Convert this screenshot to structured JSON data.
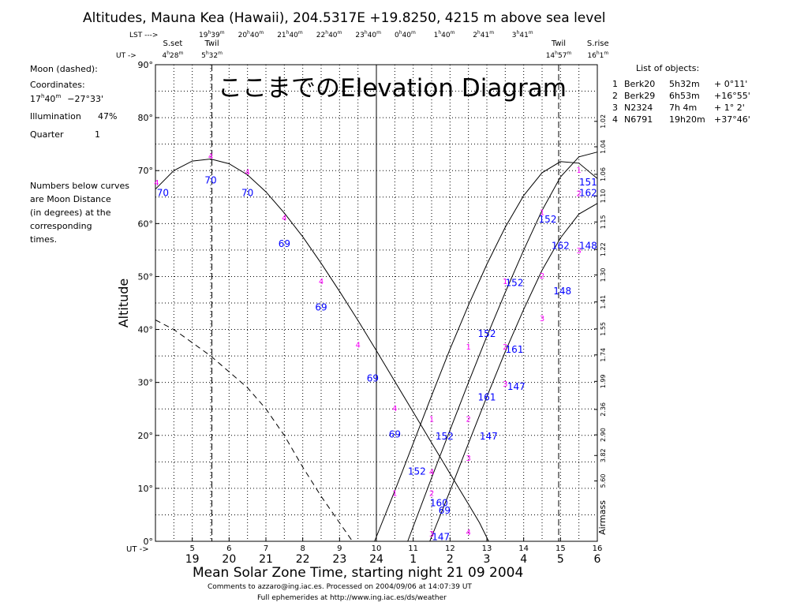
{
  "overlay_title": "ここまでのElevation Diagram",
  "header": {
    "title": "Altitudes, Mauna Kea (Hawaii), 204.5317E  +19.8250, 4215 m above sea level",
    "lst_label": "LST --->",
    "lst_ticks": [
      {
        "h": "19",
        "m": "39"
      },
      {
        "h": "20",
        "m": "40"
      },
      {
        "h": "21",
        "m": "40"
      },
      {
        "h": "22",
        "m": "40"
      },
      {
        "h": "23",
        "m": "40"
      },
      {
        "h": "0",
        "m": "40"
      },
      {
        "h": "1",
        "m": "40"
      },
      {
        "h": "2",
        "m": "41"
      },
      {
        "h": "3",
        "m": "41"
      }
    ],
    "ut_arrow": "UT ->",
    "events": [
      {
        "name": "S.set",
        "h": "4",
        "m": "28",
        "ut": 4.47
      },
      {
        "name": "Twil",
        "h": "5",
        "m": "32",
        "ut": 5.533
      },
      {
        "name": "Twil",
        "h": "14",
        "m": "57",
        "ut": 14.95
      },
      {
        "name": "S.rise",
        "h": "16",
        "m": "1",
        "ut": 16.017
      }
    ]
  },
  "left_panel": {
    "moon_label": "Moon (dashed):",
    "coords_label": "Coordinates:",
    "coords_ra_h": "17",
    "coords_ra_m": "40",
    "coords_dec": "−27°33'",
    "illumination_label": "Illumination",
    "illumination_value": "47%",
    "quarter_label": "Quarter",
    "quarter_value": "1",
    "note": [
      "Numbers below curves",
      "are Moon Distance",
      "(in degrees) at the",
      "corresponding",
      "times."
    ]
  },
  "objects_panel": {
    "title": "List of objects:",
    "items": [
      {
        "num": "1",
        "name": "Berk20",
        "ra": "5h32m",
        "dec": "+ 0°11'"
      },
      {
        "num": "2",
        "name": "Berk29",
        "ra": "6h53m",
        "dec": "+16°55'"
      },
      {
        "num": "3",
        "name": "N2324",
        "ra": "7h 4m",
        "dec": "+ 1° 2'"
      },
      {
        "num": "4",
        "name": "N6791",
        "ra": "19h20m",
        "dec": "+37°46'"
      }
    ]
  },
  "footer": {
    "ut_arrow": "UT ->",
    "xlabel": "Mean Solar Zone Time, starting night 21 09 2004",
    "comment1": "Comments to azzaro@ing.iac.es. Processed on 2004/09/06 at 14:07:39 UT",
    "comment2": "Full ephemerides at http://www.ing.iac.es/ds/weather"
  },
  "colors": {
    "marker": "#ff00ff",
    "moon_distance": "#0000ff",
    "axis": "#000000"
  },
  "chart_data": {
    "type": "line",
    "title": "Altitudes, Mauna Kea (Hawaii), 204.5317E  +19.8250, 4215 m above sea level",
    "ylabel": "Altitude",
    "xlabel": "Mean Solar Zone Time, starting night 21 09 2004",
    "xlim": [
      4.0,
      16.0
    ],
    "ylim": [
      0,
      90
    ],
    "grid": true,
    "ut_ticks": [
      5,
      6,
      7,
      8,
      9,
      10,
      11,
      12,
      13,
      14,
      15,
      16
    ],
    "local_ticks": [
      "19",
      "20",
      "21",
      "22",
      "23",
      "24",
      "1",
      "2",
      "3",
      "4",
      "5",
      "6"
    ],
    "y_ticks": [
      "0°",
      "10°",
      "20°",
      "30°",
      "40°",
      "50°",
      "60°",
      "70°",
      "80°",
      "90°"
    ],
    "airmass_label": "Airmass",
    "airmass_ticks": [
      {
        "alt": 11.4,
        "label": "5.60"
      },
      {
        "alt": 16.2,
        "label": "3.82"
      },
      {
        "alt": 20.1,
        "label": "2.90"
      },
      {
        "alt": 24.9,
        "label": "2.36"
      },
      {
        "alt": 30.2,
        "label": "1.99"
      },
      {
        "alt": 35.2,
        "label": "1.74"
      },
      {
        "alt": 40.1,
        "label": "1.55"
      },
      {
        "alt": 45.2,
        "label": "1.41"
      },
      {
        "alt": 50.3,
        "label": "1.30"
      },
      {
        "alt": 55.1,
        "label": "1.22"
      },
      {
        "alt": 60.3,
        "label": "1.15"
      },
      {
        "alt": 65.2,
        "label": "1.10"
      },
      {
        "alt": 69.3,
        "label": "1.06"
      },
      {
        "alt": 74.5,
        "label": "1.04"
      },
      {
        "alt": 79.3,
        "label": "1.02"
      }
    ],
    "midnight_ut": 10.0,
    "series": [
      {
        "name": "4",
        "style": "solid",
        "points": [
          [
            4,
            66.5
          ],
          [
            4.5,
            70
          ],
          [
            5,
            71.8
          ],
          [
            5.5,
            72.2
          ],
          [
            6,
            71.3
          ],
          [
            6.5,
            69.2
          ],
          [
            7,
            66.0
          ],
          [
            7.5,
            62.0
          ],
          [
            8,
            57.5
          ],
          [
            8.5,
            52.5
          ],
          [
            9,
            47.2
          ],
          [
            9.5,
            41.7
          ],
          [
            10,
            36.0
          ],
          [
            10.5,
            30.2
          ],
          [
            11,
            24.4
          ],
          [
            11.5,
            18.6
          ],
          [
            12,
            12.8
          ],
          [
            12.5,
            7.0
          ],
          [
            12.8,
            3.5
          ],
          [
            13.05,
            0
          ]
        ]
      },
      {
        "name": "1",
        "style": "solid",
        "points": [
          [
            9.95,
            0
          ],
          [
            10.5,
            9.5
          ],
          [
            11,
            18.5
          ],
          [
            11.5,
            27.5
          ],
          [
            12,
            36.3
          ],
          [
            12.5,
            44.6
          ],
          [
            13,
            52.3
          ],
          [
            13.5,
            59.3
          ],
          [
            14,
            65.3
          ],
          [
            14.5,
            69.6
          ],
          [
            15,
            71.7
          ],
          [
            15.5,
            71.4
          ],
          [
            16,
            68.5
          ]
        ]
      },
      {
        "name": "2",
        "style": "solid",
        "points": [
          [
            10.85,
            0
          ],
          [
            11.5,
            12
          ],
          [
            12,
            21
          ],
          [
            12.5,
            30
          ],
          [
            13,
            38.7
          ],
          [
            13.5,
            47
          ],
          [
            14,
            55
          ],
          [
            14.5,
            62.5
          ],
          [
            15,
            68.8
          ],
          [
            15.5,
            72.6
          ],
          [
            16,
            73.5
          ]
        ]
      },
      {
        "name": "3",
        "style": "solid",
        "points": [
          [
            11.45,
            0
          ],
          [
            12,
            9.5
          ],
          [
            12.5,
            18.5
          ],
          [
            13,
            27.3
          ],
          [
            13.5,
            35.8
          ],
          [
            14,
            43.8
          ],
          [
            14.5,
            51.2
          ],
          [
            15,
            57.3
          ],
          [
            15.5,
            61.8
          ],
          [
            16,
            63.8
          ]
        ]
      },
      {
        "name": "Moon",
        "style": "dashed",
        "points": [
          [
            4,
            41.8
          ],
          [
            4.5,
            40
          ],
          [
            5,
            37.5
          ],
          [
            5.5,
            35
          ],
          [
            6,
            32
          ],
          [
            6.5,
            29
          ],
          [
            7,
            25
          ],
          [
            7.5,
            20
          ],
          [
            8,
            14
          ],
          [
            8.5,
            8.5
          ],
          [
            9,
            3.5
          ],
          [
            9.35,
            0
          ]
        ]
      }
    ],
    "markers": [
      {
        "label": "4",
        "ut": 4.03,
        "alt": 67.8
      },
      {
        "label": "4",
        "ut": 5.5,
        "alt": 72.8
      },
      {
        "label": "4",
        "ut": 6.5,
        "alt": 69.8
      },
      {
        "label": "4",
        "ut": 7.5,
        "alt": 61.2
      },
      {
        "label": "4",
        "ut": 8.5,
        "alt": 49.2
      },
      {
        "label": "4",
        "ut": 9.5,
        "alt": 37.2
      },
      {
        "label": "4",
        "ut": 10.5,
        "alt": 25.2
      },
      {
        "label": "4",
        "ut": 11.5,
        "alt": 13.2
      },
      {
        "label": "4",
        "ut": 12.5,
        "alt": 1.8
      },
      {
        "label": "1",
        "ut": 10.5,
        "alt": 9.2
      },
      {
        "label": "1",
        "ut": 11.5,
        "alt": 23.2
      },
      {
        "label": "1",
        "ut": 12.5,
        "alt": 36.8
      },
      {
        "label": "1",
        "ut": 13.5,
        "alt": 49.2
      },
      {
        "label": "1",
        "ut": 14.5,
        "alt": 62.2
      },
      {
        "label": "1",
        "ut": 15.5,
        "alt": 70.2
      },
      {
        "label": "2",
        "ut": 11.5,
        "alt": 9.2
      },
      {
        "label": "2",
        "ut": 12.5,
        "alt": 23.2
      },
      {
        "label": "2",
        "ut": 13.5,
        "alt": 36.8
      },
      {
        "label": "2",
        "ut": 14.5,
        "alt": 50.2
      },
      {
        "label": "2",
        "ut": 15.5,
        "alt": 65.8
      },
      {
        "label": "3",
        "ut": 11.5,
        "alt": 1.5
      },
      {
        "label": "3",
        "ut": 12.5,
        "alt": 15.8
      },
      {
        "label": "3",
        "ut": 13.5,
        "alt": 29.8
      },
      {
        "label": "3",
        "ut": 14.5,
        "alt": 42.2
      },
      {
        "label": "3",
        "ut": 15.5,
        "alt": 55.0
      }
    ],
    "moon_distances": [
      {
        "label": "70",
        "ut": 4.2,
        "alt": 65.8
      },
      {
        "label": "70",
        "ut": 5.5,
        "alt": 68.2
      },
      {
        "label": "70",
        "ut": 6.5,
        "alt": 65.8
      },
      {
        "label": "69",
        "ut": 7.5,
        "alt": 56.2
      },
      {
        "label": "69",
        "ut": 8.5,
        "alt": 44.2
      },
      {
        "label": "69",
        "ut": 9.9,
        "alt": 30.8
      },
      {
        "label": "69",
        "ut": 10.5,
        "alt": 20.2
      },
      {
        "label": "69",
        "ut": 11.85,
        "alt": 5.8
      },
      {
        "label": "152",
        "ut": 11.1,
        "alt": 13.2
      },
      {
        "label": "152",
        "ut": 11.85,
        "alt": 19.8
      },
      {
        "label": "152",
        "ut": 13.0,
        "alt": 39.2
      },
      {
        "label": "152",
        "ut": 13.75,
        "alt": 48.8
      },
      {
        "label": "152",
        "ut": 14.65,
        "alt": 60.8
      },
      {
        "label": "151",
        "ut": 15.75,
        "alt": 67.8
      },
      {
        "label": "160",
        "ut": 11.7,
        "alt": 7.2
      },
      {
        "label": "161",
        "ut": 13.0,
        "alt": 27.2
      },
      {
        "label": "161",
        "ut": 13.75,
        "alt": 36.2
      },
      {
        "label": "162",
        "ut": 15.0,
        "alt": 55.8
      },
      {
        "label": "162",
        "ut": 15.75,
        "alt": 65.8
      },
      {
        "label": "147",
        "ut": 11.75,
        "alt": 0.8
      },
      {
        "label": "147",
        "ut": 13.05,
        "alt": 19.8
      },
      {
        "label": "147",
        "ut": 13.8,
        "alt": 29.2
      },
      {
        "label": "148",
        "ut": 15.05,
        "alt": 47.2
      },
      {
        "label": "148",
        "ut": 15.75,
        "alt": 55.8
      }
    ]
  }
}
